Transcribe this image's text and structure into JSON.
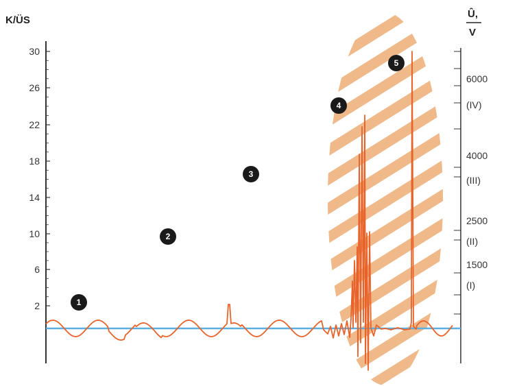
{
  "chart_data": {
    "type": "line",
    "left_axis": {
      "unit_label": "K/ÜS",
      "ticks": [
        "30",
        "26",
        "22",
        "18",
        "14",
        "10",
        "6",
        "2"
      ]
    },
    "right_axis": {
      "unit_label_top": "Û,",
      "unit_label_bottom": "V",
      "levels": [
        {
          "value": "6000",
          "category": "(IV)"
        },
        {
          "value": "4000",
          "category": "(III)"
        },
        {
          "value": "2500",
          "category": "(II)"
        },
        {
          "value": "1500",
          "category": "(I)"
        }
      ]
    },
    "markers": [
      "1",
      "2",
      "3",
      "4",
      "5"
    ],
    "colors": {
      "signal": "#e8632a",
      "baseline": "#5aaee0",
      "hatch": "#f0b98a",
      "axis": "#333333",
      "marker_fill": "#1a1a1a"
    }
  }
}
